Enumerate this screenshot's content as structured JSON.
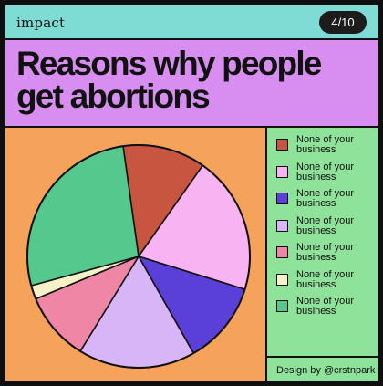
{
  "brand": "impact",
  "page_indicator": "4/10",
  "title": "Reasons why people get abortions",
  "credit": "Design by @crstnpark",
  "legend": [
    {
      "label": "None of your business",
      "color": "#c8553f"
    },
    {
      "label": "None of your business",
      "color": "#f7b3f2"
    },
    {
      "label": "None of your business",
      "color": "#5a3fd8"
    },
    {
      "label": "None of your business",
      "color": "#d7b5f7"
    },
    {
      "label": "None of your business",
      "color": "#ef86a5"
    },
    {
      "label": "None of your business",
      "color": "#f5f2c7"
    },
    {
      "label": "None of your business",
      "color": "#55c98d"
    }
  ],
  "chart_data": {
    "type": "pie",
    "title": "Reasons why people get abortions",
    "labels": [
      "None of your business",
      "None of your business",
      "None of your business",
      "None of your business",
      "None of your business",
      "None of your business",
      "None of your business"
    ],
    "values": [
      12,
      20,
      12,
      17,
      10,
      2,
      27
    ],
    "colors": [
      "#c8553f",
      "#f7b3f2",
      "#5a3fd8",
      "#d7b5f7",
      "#ef86a5",
      "#f5f2c7",
      "#55c98d"
    ],
    "start_angle_deg": -8,
    "legend_position": "right"
  }
}
